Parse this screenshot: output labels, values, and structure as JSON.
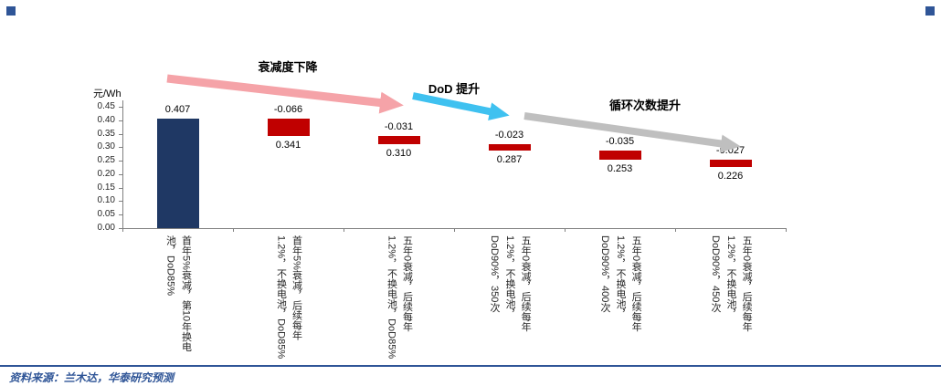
{
  "footer": {
    "source_text": "资料来源：兰木达，华泰研究预测"
  },
  "brand": {
    "accent_blue": "#2F5597"
  },
  "chart_data": {
    "type": "bar",
    "subtype": "waterfall",
    "title": "",
    "unit_label": "元/Wh",
    "ylim": [
      0,
      0.45
    ],
    "ytick_labels": [
      "0.00",
      "0.05",
      "0.10",
      "0.15",
      "0.20",
      "0.25",
      "0.30",
      "0.35",
      "0.40",
      "0.45"
    ],
    "grid": false,
    "legend": "none",
    "colors": {
      "total_bar": "#1F3864",
      "delta_bar": "#C00000"
    },
    "columns": [
      {
        "category": "首年5%衰减，第10年换电池，DoD85%",
        "kind": "total",
        "value": 0.407,
        "label": "0.407"
      },
      {
        "category": "首年5%衰减，后续每年1.2%，不换电池，DoD85%",
        "kind": "delta",
        "delta": -0.066,
        "result": 0.341,
        "delta_label": "-0.066",
        "result_label": "0.341"
      },
      {
        "category": "五年0衰减，后续每年1.2%，不换电池，DoD85%",
        "kind": "delta",
        "delta": -0.031,
        "result": 0.31,
        "delta_label": "-0.031",
        "result_label": "0.310"
      },
      {
        "category": "五年0衰减，后续每年1.2%，不换电池，DoD90%，350次",
        "kind": "delta",
        "delta": -0.023,
        "result": 0.287,
        "delta_label": "-0.023",
        "result_label": "0.287"
      },
      {
        "category": "五年0衰减，后续每年1.2%，不换电池，DoD90%，400次",
        "kind": "delta",
        "delta": -0.035,
        "result": 0.253,
        "delta_label": "-0.035",
        "result_label": "0.253"
      },
      {
        "category": "五年0衰减，后续每年1.2%，不换电池，DoD90%，450次",
        "kind": "delta",
        "delta": -0.027,
        "result": 0.226,
        "delta_label": "-0.027",
        "result_label": "0.226"
      }
    ],
    "annotations": [
      {
        "label": "衰减度下降",
        "color": "#F5A3A8"
      },
      {
        "label": "DoD 提升",
        "color": "#3FC1F0"
      },
      {
        "label": "循环次数提升",
        "color": "#BFBFBF"
      }
    ]
  }
}
